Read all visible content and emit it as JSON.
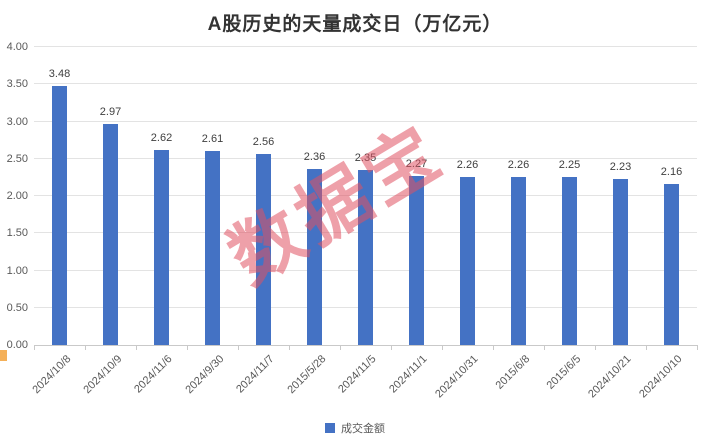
{
  "header": {
    "title": "A股历史的天量成交日（万亿元）"
  },
  "watermark": {
    "text": "数据宝",
    "color": "rgba(224,82,99,0.55)"
  },
  "legend": {
    "label": "成交金额",
    "swatch_color": "#4472C4"
  },
  "chart_data": {
    "type": "bar",
    "title": "A股历史的天量成交日（万亿元）",
    "series_name": "成交金额",
    "categories": [
      "2024/10/8",
      "2024/10/9",
      "2024/11/6",
      "2024/9/30",
      "2024/11/7",
      "2015/5/28",
      "2024/11/5",
      "2024/11/1",
      "2024/10/31",
      "2015/6/8",
      "2015/6/5",
      "2024/10/21",
      "2024/10/10"
    ],
    "values": [
      3.48,
      2.97,
      2.62,
      2.61,
      2.56,
      2.36,
      2.35,
      2.27,
      2.26,
      2.26,
      2.25,
      2.23,
      2.16
    ],
    "data_labels": [
      "3.48",
      "2.97",
      "2.62",
      "2.61",
      "2.56",
      "2.36",
      "2.35",
      "2.27",
      "2.26",
      "2.26",
      "2.25",
      "2.23",
      "2.16"
    ],
    "xlabel": "",
    "ylabel": "",
    "ylim": [
      0,
      4
    ],
    "ytick_interval": 0.5,
    "ytick_labels": [
      "4.00",
      "3.50",
      "3.00",
      "2.50",
      "2.00",
      "1.50",
      "1.00",
      "0.50",
      "0.00"
    ],
    "x_label_rotation": -45,
    "grid": true,
    "legend_position": "bottom",
    "bar_color": "#4472C4"
  },
  "colors": {
    "bar": "#4472C4",
    "gridline": "#e3e3e3",
    "axis_line": "#c9c9c9",
    "axis_text": "#595959",
    "value_label": "#3f3f3f",
    "title_text": "#333333",
    "watermark": "rgba(224,82,99,0.55)",
    "edge_marker": "#f2a23c"
  }
}
